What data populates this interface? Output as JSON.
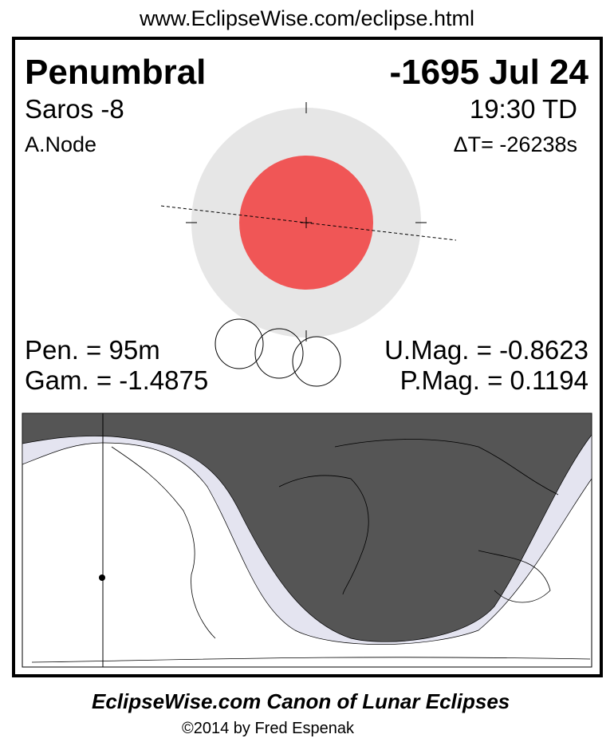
{
  "url": "www.EclipseWise.com/eclipse.html",
  "eclipse_type": "Penumbral",
  "date": "-1695 Jul 24",
  "saros": "Saros  -8",
  "time": "19:30 TD",
  "node": "A.Node",
  "delta_t": "ΔT= -26238s",
  "pen_duration": "Pen. =  95m",
  "gamma": "Gam. = -1.4875",
  "umbral_mag": "U.Mag. = -0.8623",
  "penumbral_mag": "P.Mag. = 0.1194",
  "footer_title": "EclipseWise.com Canon of Lunar Eclipses",
  "footer_copyright": "©2014 by Fred Espenak",
  "colors": {
    "umbra": "#f05656",
    "penumbra": "#e6e6e6",
    "map_night": "#555555",
    "map_penumbral_band": "#e4e4f0"
  }
}
